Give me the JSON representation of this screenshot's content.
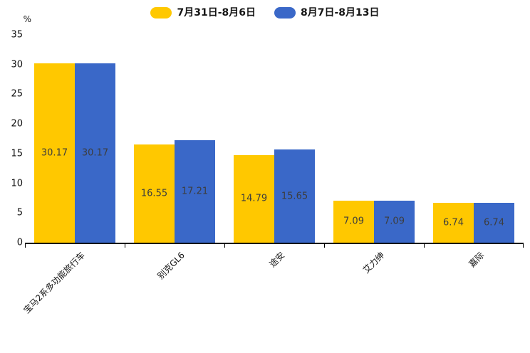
{
  "chart_data": {
    "type": "bar",
    "title": "",
    "ylabel": "%",
    "xlabel": "",
    "categories": [
      "宝马2系多功能旅行车",
      "别克GL6",
      "途安",
      "艾力绅",
      "嘉际"
    ],
    "series": [
      {
        "name": "7月31日-8月6日",
        "color": "#FFC800",
        "values": [
          30.17,
          16.55,
          14.79,
          7.09,
          6.74
        ]
      },
      {
        "name": "8月7日-8月13日",
        "color": "#3A68C8",
        "values": [
          30.17,
          17.21,
          15.65,
          7.09,
          6.74
        ]
      }
    ],
    "y_ticks": [
      0,
      5,
      10,
      15,
      20,
      25,
      30,
      35
    ],
    "ylim": [
      0,
      35
    ],
    "grid": false,
    "legend_position": "top",
    "value_label_position": "inside-middle",
    "value_label_color": "#3d3d3d",
    "axis_color": "#000000"
  }
}
